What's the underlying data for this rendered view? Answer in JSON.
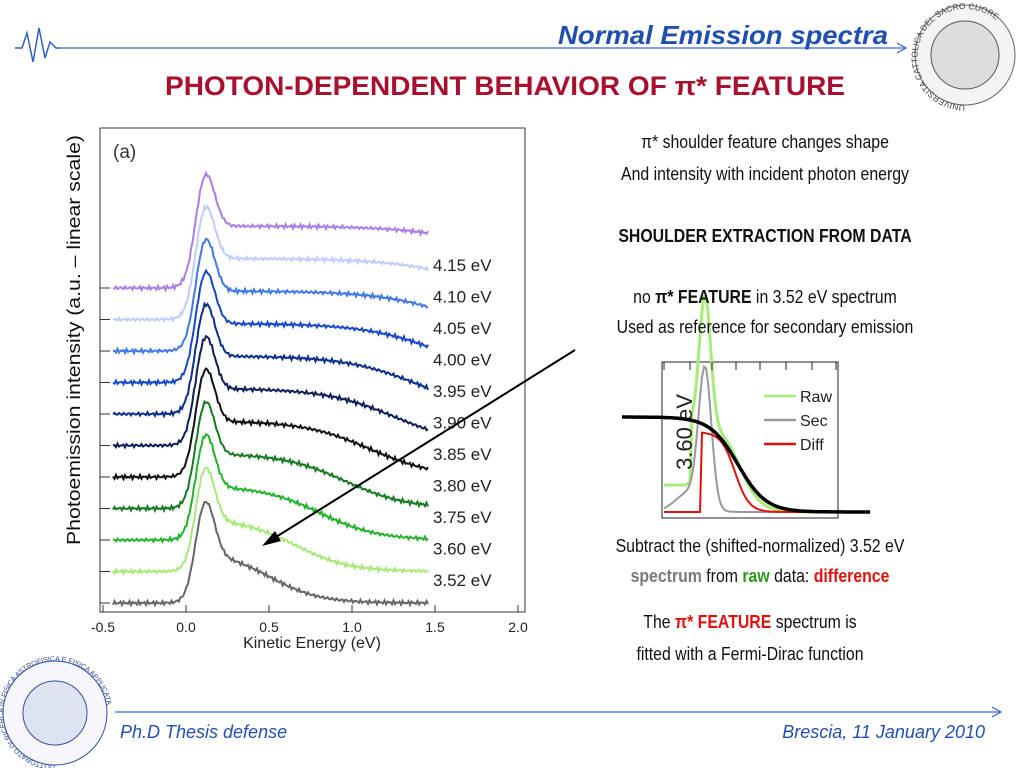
{
  "header": {
    "section": "Normal Emission spectra",
    "title": "PHOTON-DEPENDENT BEHAVIOR OF π* FEATURE",
    "logo": "UNIVERSITA CATTOLICA DEL SACRO CUORE"
  },
  "figure": {
    "panel": "(a)",
    "y_label": "Photoemission intensity (a.u. – linear scale)",
    "x_label": "Kinetic Energy (eV)",
    "x_ticks": [
      "-0.5",
      "0.0",
      "0.5",
      "1.0",
      "1.5",
      "2.0"
    ],
    "curve_labels": [
      "4.15 eV",
      "4.10 eV",
      "4.05 eV",
      "4.00 eV",
      "3.95 eV",
      "3.90 eV",
      "3.85 eV",
      "3.80 eV",
      "3.75 eV",
      "3.60 eV",
      "3.52 eV"
    ]
  },
  "notes": {
    "intro": [
      "π* shoulder feature changes shape",
      "And intensity with incident photon energy"
    ],
    "heading": "SHOULDER EXTRACTION FROM DATA",
    "reference": [
      [
        "no ",
        "π* FEATURE",
        " in 3.52 eV spectrum"
      ],
      [
        "Used as reference for secondary emission"
      ]
    ],
    "subtract": [
      [
        "Subtract the (shifted-normalized) 3.52 eV"
      ],
      [
        "spectrum",
        " from ",
        "raw",
        " data: ",
        "difference"
      ]
    ],
    "fit": [
      [
        "The ",
        "π* FEATURE",
        " spectrum is"
      ],
      [
        "fitted with a Fermi-Dirac function"
      ]
    ]
  },
  "inset": {
    "y_label": "3.60 eV",
    "legend": [
      "Raw",
      "Sec",
      "Diff"
    ]
  },
  "footer": {
    "left": "Ph.D Thesis defense",
    "right": "Brescia, 11 January 2010",
    "logo": "DOTTORATO DI RICERCA IN FISICA ASTROFISICA E FISICA APPLICATA"
  }
}
